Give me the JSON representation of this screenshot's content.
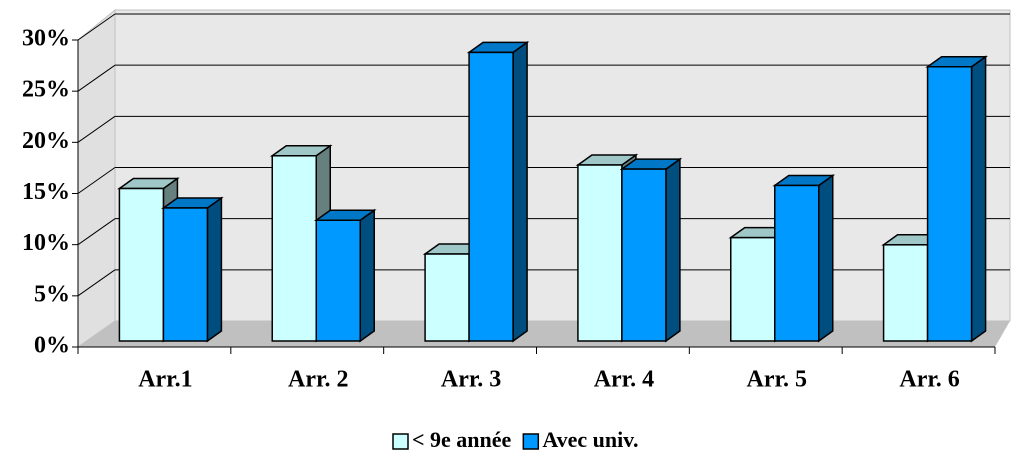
{
  "chart_data": {
    "type": "bar3d",
    "categories": [
      "Arr.1",
      "Arr. 2",
      "Arr. 3",
      "Arr. 4",
      "Arr. 5",
      "Arr. 6"
    ],
    "series": [
      {
        "name": "< 9e année",
        "color": "#ccffff",
        "values": [
          14.9,
          18.1,
          8.5,
          17.2,
          10.1,
          9.4
        ]
      },
      {
        "name": "Avec univ.",
        "color": "#0099ff",
        "values": [
          13.0,
          11.8,
          28.2,
          16.8,
          15.2,
          26.8
        ]
      }
    ],
    "ylim": [
      0,
      30
    ],
    "yticks": [
      {
        "value": 0,
        "label": "0%"
      },
      {
        "value": 5,
        "label": "5%"
      },
      {
        "value": 10,
        "label": "10%"
      },
      {
        "value": 15,
        "label": "15%"
      },
      {
        "value": 20,
        "label": "20%"
      },
      {
        "value": 25,
        "label": "25%"
      },
      {
        "value": 30,
        "label": "30%"
      }
    ],
    "grid": true,
    "legend": "bottom"
  }
}
